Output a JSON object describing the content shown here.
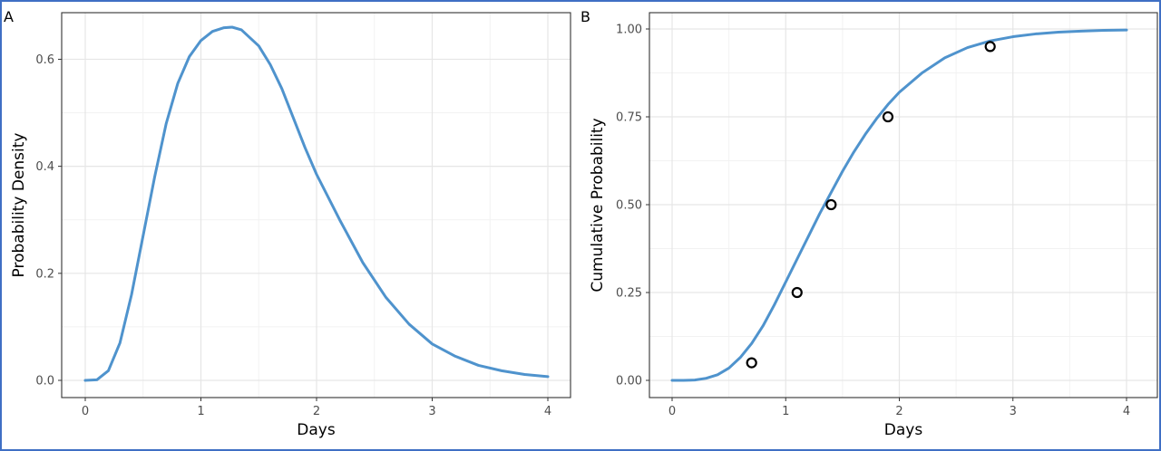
{
  "chart_data": [
    {
      "panel_label": "A",
      "type": "line",
      "xlabel": "Days",
      "ylabel": "Probability Density",
      "xlim": [
        0,
        4
      ],
      "ylim": [
        0,
        0.66
      ],
      "x_ticks": [
        "0",
        "1",
        "2",
        "3",
        "4"
      ],
      "y_ticks": [
        "0.0",
        "0.2",
        "0.4",
        "0.6"
      ],
      "grid": true,
      "line_color": "#4f93cd",
      "series": [
        {
          "x": [
            0,
            0.1,
            0.2,
            0.3,
            0.4,
            0.5,
            0.6,
            0.7,
            0.8,
            0.9,
            1.0,
            1.1,
            1.2,
            1.27,
            1.35,
            1.5,
            1.6,
            1.7,
            1.8,
            1.9,
            2.0,
            2.2,
            2.4,
            2.6,
            2.8,
            3.0,
            3.2,
            3.4,
            3.6,
            3.8,
            4.0
          ],
          "values": [
            0.0,
            0.001,
            0.018,
            0.07,
            0.16,
            0.27,
            0.38,
            0.48,
            0.555,
            0.605,
            0.635,
            0.652,
            0.659,
            0.66,
            0.655,
            0.625,
            0.59,
            0.545,
            0.49,
            0.435,
            0.385,
            0.3,
            0.22,
            0.155,
            0.105,
            0.068,
            0.045,
            0.028,
            0.018,
            0.011,
            0.007
          ]
        }
      ]
    },
    {
      "panel_label": "B",
      "type": "line",
      "xlabel": "Days",
      "ylabel": "Cumulative Probability",
      "xlim": [
        0,
        4
      ],
      "ylim": [
        0,
        1
      ],
      "x_ticks": [
        "0",
        "1",
        "2",
        "3",
        "4"
      ],
      "y_ticks": [
        "0.00",
        "0.25",
        "0.50",
        "0.75",
        "1.00"
      ],
      "grid": true,
      "line_color": "#4f93cd",
      "series": [
        {
          "x": [
            0,
            0.1,
            0.2,
            0.3,
            0.4,
            0.5,
            0.6,
            0.7,
            0.8,
            0.9,
            1.0,
            1.1,
            1.2,
            1.3,
            1.4,
            1.5,
            1.6,
            1.7,
            1.8,
            1.9,
            2.0,
            2.2,
            2.4,
            2.6,
            2.8,
            3.0,
            3.2,
            3.4,
            3.6,
            3.8,
            4.0
          ],
          "values": [
            0.0,
            0.0,
            0.001,
            0.006,
            0.016,
            0.035,
            0.065,
            0.105,
            0.155,
            0.215,
            0.28,
            0.345,
            0.41,
            0.475,
            0.535,
            0.595,
            0.65,
            0.7,
            0.745,
            0.785,
            0.82,
            0.875,
            0.918,
            0.947,
            0.966,
            0.978,
            0.986,
            0.991,
            0.994,
            0.996,
            0.997
          ]
        }
      ],
      "points": {
        "x": [
          0.7,
          1.1,
          1.4,
          1.9,
          2.8
        ],
        "y": [
          0.05,
          0.25,
          0.5,
          0.75,
          0.95
        ]
      }
    }
  ]
}
